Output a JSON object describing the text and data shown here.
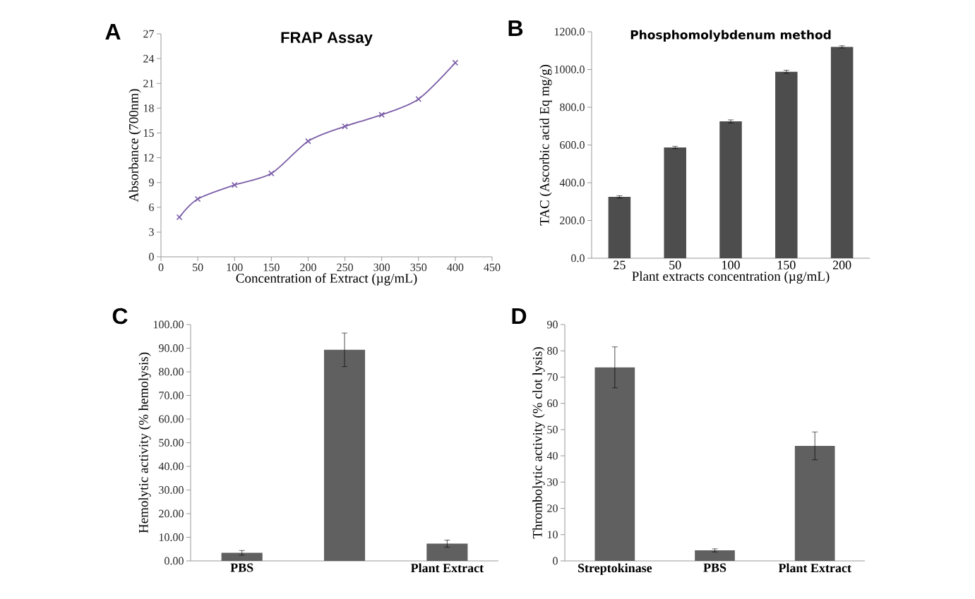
{
  "chart_data": [
    {
      "type": "line",
      "title": "FRAP Assay",
      "xlabel": "Concentration of Extract (µg/mL)",
      "ylabel": "Absorbance (700nm)",
      "annotations": [
        "A"
      ],
      "x": [
        25,
        50,
        100,
        150,
        200,
        250,
        300,
        350,
        400
      ],
      "series": [
        {
          "color": "#7b5ea7",
          "values": [
            4.8,
            7.0,
            8.7,
            10.1,
            14.0,
            15.8,
            17.2,
            19.1,
            23.5
          ]
        }
      ],
      "marker": "cross",
      "line_style": "solid",
      "xlim": [
        0,
        450
      ],
      "xticks": [
        0,
        50,
        100,
        150,
        200,
        250,
        300,
        350,
        400,
        450
      ],
      "ylim": [
        0,
        27
      ],
      "yticks": [
        0,
        3,
        6,
        9,
        12,
        15,
        18,
        21,
        24,
        27
      ]
    },
    {
      "type": "bar",
      "title": "Phosphomolybdenum method",
      "xlabel": "Plant extracts concentration (µg/mL)",
      "ylabel": "TAC (Ascorbic acid Eq mg/g)",
      "annotations": [
        "B"
      ],
      "categories": [
        "25",
        "50",
        "100",
        "150",
        "200"
      ],
      "series": [
        {
          "color": "#4d4d4d",
          "values": [
            325,
            587,
            725,
            988,
            1120
          ],
          "errors": [
            6,
            6,
            8,
            8,
            6
          ]
        }
      ],
      "ylim": [
        0,
        1200
      ],
      "yticks": [
        {
          "value": 0,
          "label": "0.0"
        },
        {
          "value": 200,
          "label": "200.0"
        },
        {
          "value": 400,
          "label": "400.0"
        },
        {
          "value": 600,
          "label": "600.0"
        },
        {
          "value": 800,
          "label": "800.0"
        },
        {
          "value": 1000,
          "label": "1000.0"
        },
        {
          "value": 1200,
          "label": "1200.0"
        }
      ]
    },
    {
      "type": "bar",
      "ylabel": "Hemolytic activity  (% hemolysis)",
      "annotations": [
        "C"
      ],
      "categories": [
        "PBS",
        null,
        "Plant Extract"
      ],
      "series": [
        {
          "color": "#606060",
          "values": [
            3.4,
            89.3,
            7.3
          ],
          "errors": [
            1.0,
            7.1,
            1.5
          ]
        }
      ],
      "ylim": [
        0,
        100
      ],
      "yticks": [
        {
          "value": 0,
          "label": "0.00"
        },
        {
          "value": 10,
          "label": "10.00"
        },
        {
          "value": 20,
          "label": "20.00"
        },
        {
          "value": 30,
          "label": "30.00"
        },
        {
          "value": 40,
          "label": "40.00"
        },
        {
          "value": 50,
          "label": "50.00"
        },
        {
          "value": 60,
          "label": "60.00"
        },
        {
          "value": 70,
          "label": "70.00"
        },
        {
          "value": 80,
          "label": "80.00"
        },
        {
          "value": 90,
          "label": "90.00"
        },
        {
          "value": 100,
          "label": "100.00"
        }
      ]
    },
    {
      "type": "bar",
      "ylabel": "Thrombolytic activity  (% clot lysis)",
      "annotations": [
        "D"
      ],
      "categories": [
        "Streptokinase",
        "PBS",
        "Plant Extract"
      ],
      "series": [
        {
          "color": "#606060",
          "values": [
            73.7,
            4.0,
            43.8
          ],
          "errors": [
            7.8,
            0.6,
            5.3
          ]
        }
      ],
      "ylim": [
        0,
        90
      ],
      "yticks": [
        0,
        10,
        20,
        30,
        40,
        50,
        60,
        70,
        80,
        90
      ]
    }
  ]
}
